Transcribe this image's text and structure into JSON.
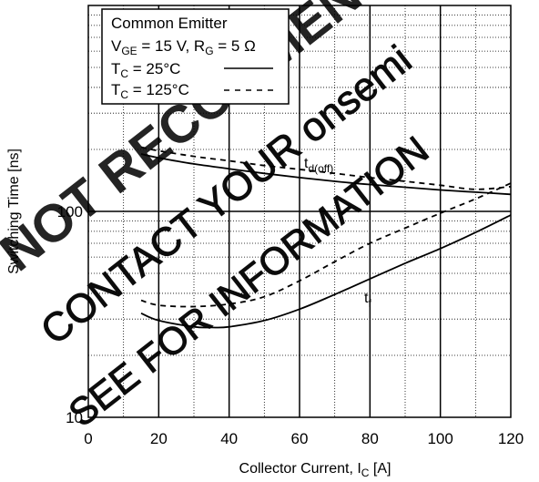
{
  "chart_data": {
    "type": "line",
    "xlabel": "Collector Current, I",
    "xlabel_sub": "C",
    "xlabel_unit": " [A]",
    "ylabel": "Switching Time [ns]",
    "xlim": [
      0,
      120
    ],
    "ylim": [
      10,
      1000
    ],
    "yscale": "log",
    "x_ticks": [
      "0",
      "20",
      "40",
      "60",
      "80",
      "100",
      "120"
    ],
    "y_ticks": [
      "10",
      "100"
    ],
    "grid": true,
    "legend": {
      "position": "top-left",
      "title": "Common Emitter",
      "cond_vge": "V",
      "cond_vge_sub": "GE",
      "cond_vge_val": " = 15 V, R",
      "cond_rg_sub": "G",
      "cond_rg_val": " = 5 Ω",
      "entries": [
        {
          "label": "T",
          "sub": "C",
          "rest": " = 25°C",
          "style": "solid"
        },
        {
          "label": "T",
          "sub": "C",
          "rest": " = 125°C",
          "style": "dashed"
        }
      ]
    },
    "annotations": [
      {
        "text": "t",
        "sub": "d(off)"
      },
      {
        "text": "t",
        "sub": "f"
      }
    ],
    "series": [
      {
        "curve": "td(off)",
        "temp": "25°C",
        "style": "solid",
        "x": [
          15,
          20,
          30,
          40,
          50,
          60,
          70,
          80,
          90,
          100,
          110,
          120
        ],
        "y": [
          190,
          182,
          170,
          161,
          153,
          146,
          140,
          135,
          131,
          127,
          124,
          121
        ]
      },
      {
        "curve": "td(off)",
        "temp": "125°C",
        "style": "dashed",
        "x": [
          15,
          20,
          30,
          40,
          50,
          60,
          70,
          80,
          90,
          100,
          110,
          120
        ],
        "y": [
          205,
          197,
          185,
          176,
          167,
          160,
          153,
          146,
          140,
          134,
          128,
          132
        ]
      },
      {
        "curve": "tf",
        "temp": "25°C",
        "style": "solid",
        "x": [
          15,
          20,
          30,
          35,
          40,
          50,
          60,
          70,
          80,
          90,
          100,
          110,
          120
        ],
        "y": [
          32,
          29.5,
          27.5,
          27.3,
          27.5,
          29.5,
          33.5,
          39.5,
          47,
          56,
          66,
          79,
          96
        ]
      },
      {
        "curve": "tf",
        "temp": "125°C",
        "style": "dashed",
        "x": [
          15,
          20,
          30,
          40,
          50,
          60,
          70,
          80,
          90,
          100,
          110,
          120
        ],
        "y": [
          37,
          35,
          34.5,
          35.5,
          38.5,
          46,
          57,
          70,
          83,
          98,
          115,
          137
        ]
      }
    ],
    "watermark": {
      "line1": "NOT RECOMMENDED FOR NEW",
      "line2": "CONTACT YOUR onsemi",
      "line3": "SEE FOR INFORMATION"
    }
  }
}
